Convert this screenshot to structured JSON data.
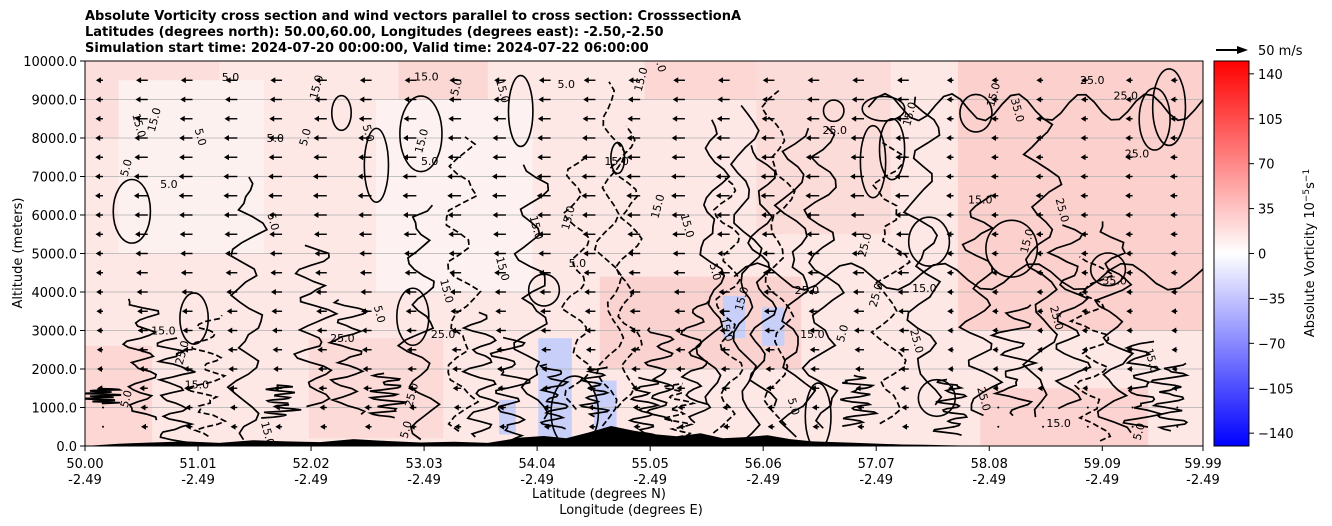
{
  "chart_data": {
    "type": "heatmap",
    "title_lines": [
      "Absolute Vorticity cross section and wind vectors parallel to cross section: CrosssectionA",
      "Latitudes (degrees north): 50.00,60.00, Longitudes (degrees east): -2.50,-2.50",
      "Simulation start time: 2024-07-20 00:00:00, Valid time: 2024-07-22 06:00:00"
    ],
    "ylabel": "Altitude (meters)",
    "xlabel_lines": [
      "Latitude (degrees N)",
      "Longitude (degrees E)"
    ],
    "ylim": [
      0,
      10000
    ],
    "xlim": [
      50.0,
      59.99
    ],
    "y_ticks": [
      "0.0",
      "1000.0",
      "2000.0",
      "3000.0",
      "4000.0",
      "5000.0",
      "6000.0",
      "7000.0",
      "8000.0",
      "9000.0",
      "10000.0"
    ],
    "y_tick_values": [
      0,
      1000,
      2000,
      3000,
      4000,
      5000,
      6000,
      7000,
      8000,
      9000,
      10000
    ],
    "x_ticks": [
      {
        "lat": "50.00",
        "lon": "-2.49",
        "value": 50.0
      },
      {
        "lat": "51.01",
        "lon": "-2.49",
        "value": 51.01
      },
      {
        "lat": "52.02",
        "lon": "-2.49",
        "value": 52.02
      },
      {
        "lat": "53.03",
        "lon": "-2.49",
        "value": 53.03
      },
      {
        "lat": "54.04",
        "lon": "-2.49",
        "value": 54.04
      },
      {
        "lat": "55.05",
        "lon": "-2.49",
        "value": 55.05
      },
      {
        "lat": "56.06",
        "lon": "-2.49",
        "value": 56.06
      },
      {
        "lat": "57.07",
        "lon": "-2.49",
        "value": 57.07
      },
      {
        "lat": "58.08",
        "lon": "-2.49",
        "value": 58.08
      },
      {
        "lat": "59.09",
        "lon": "-2.49",
        "value": 59.09
      },
      {
        "lat": "59.99",
        "lon": "-2.49",
        "value": 59.99
      }
    ],
    "grid": "horizontal",
    "colormap": "bwr",
    "colorbar": {
      "label": "Absolute Vorticity 10$^{-5}$s$^{-1}$",
      "label_main": "Absolute Vorticity 10",
      "label_exp1": "−5",
      "label_unit": "s",
      "label_exp2": "−1",
      "range": [
        -150,
        150
      ],
      "ticks": [
        "140",
        "105",
        "70",
        "35",
        "0",
        "−35",
        "−70",
        "−105",
        "−140"
      ],
      "tick_values": [
        140,
        105,
        70,
        35,
        0,
        -35,
        -70,
        -105,
        -140
      ],
      "low_color": "#0000ff",
      "mid_color": "#ffffff",
      "high_color": "#ff0000"
    },
    "quiver_key": "50 m/s",
    "contour_labels": [
      "5.0",
      "15.0",
      "25.0",
      "35.0"
    ],
    "contour_label_positions": [
      {
        "text": "5.0",
        "lat": 51.3,
        "alt": 9480
      },
      {
        "text": "15.0",
        "lat": 52.1,
        "alt": 9300
      },
      {
        "text": "5.0",
        "lat": 52.5,
        "alt": 8100
      },
      {
        "text": "15.0",
        "lat": 53.05,
        "alt": 9500
      },
      {
        "text": "5.0",
        "lat": 53.35,
        "alt": 9300
      },
      {
        "text": "15.0",
        "lat": 53.7,
        "alt": 9200
      },
      {
        "text": "5.0",
        "lat": 54.3,
        "alt": 9300
      },
      {
        "text": "15.0",
        "lat": 55.0,
        "alt": 9500
      },
      {
        "text": "15.0",
        "lat": 55.1,
        "alt": 10000
      },
      {
        "text": "25.0",
        "lat": 56.7,
        "alt": 8100
      },
      {
        "text": "15.0",
        "lat": 57.4,
        "alt": 8600
      },
      {
        "text": "35.0",
        "lat": 58.3,
        "alt": 8700
      },
      {
        "text": "25.0",
        "lat": 59.0,
        "alt": 9400
      },
      {
        "text": "5.0",
        "lat": 50.4,
        "alt": 7200
      },
      {
        "text": "15.0",
        "lat": 50.45,
        "alt": 8300
      },
      {
        "text": "5.0",
        "lat": 50.75,
        "alt": 6700
      },
      {
        "text": "15.0",
        "lat": 50.65,
        "alt": 8450
      },
      {
        "text": "5.0",
        "lat": 51.0,
        "alt": 8000
      },
      {
        "text": "5.0",
        "lat": 51.7,
        "alt": 7900
      },
      {
        "text": "5.0",
        "lat": 52.0,
        "alt": 8000
      },
      {
        "text": "5.0",
        "lat": 51.65,
        "alt": 5800
      },
      {
        "text": "5.0",
        "lat": 53.08,
        "alt": 7300
      },
      {
        "text": "15.0",
        "lat": 53.04,
        "alt": 7900
      },
      {
        "text": "15.0",
        "lat": 54.0,
        "alt": 5650
      },
      {
        "text": "5.0",
        "lat": 54.4,
        "alt": 4650
      },
      {
        "text": "15.0",
        "lat": 54.35,
        "alt": 5900
      },
      {
        "text": "15.0",
        "lat": 53.7,
        "alt": 4580
      },
      {
        "text": "15.0",
        "lat": 54.75,
        "alt": 7300
      },
      {
        "text": "15.0",
        "lat": 55.15,
        "alt": 6200
      },
      {
        "text": "15.0",
        "lat": 55.35,
        "alt": 5700
      },
      {
        "text": "25.0",
        "lat": 56.45,
        "alt": 3950
      },
      {
        "text": "25.0",
        "lat": 57.1,
        "alt": 3900
      },
      {
        "text": "25.0",
        "lat": 58.0,
        "alt": 1200
      },
      {
        "text": "15.0",
        "lat": 50.7,
        "alt": 2900
      },
      {
        "text": "25.0",
        "lat": 50.9,
        "alt": 2400
      },
      {
        "text": "5.0",
        "lat": 52.6,
        "alt": 3400
      },
      {
        "text": "25.0",
        "lat": 53.2,
        "alt": 2800
      },
      {
        "text": "25.0",
        "lat": 52.95,
        "alt": 1300
      },
      {
        "text": "15.0",
        "lat": 53.2,
        "alt": 4000
      },
      {
        "text": "15.0",
        "lat": 58.7,
        "alt": 500
      },
      {
        "text": "5.0",
        "lat": 59.45,
        "alt": 350
      },
      {
        "text": "15.0",
        "lat": 59.5,
        "alt": 2200
      },
      {
        "text": "25.0",
        "lat": 59.4,
        "alt": 7500
      },
      {
        "text": "15.0",
        "lat": 58.45,
        "alt": 5300
      },
      {
        "text": "25.0",
        "lat": 58.65,
        "alt": 3300
      },
      {
        "text": "35.0",
        "lat": 59.2,
        "alt": 4200
      },
      {
        "text": "25.0",
        "lat": 57.0,
        "alt": 5200
      },
      {
        "text": "25.0",
        "lat": 57.4,
        "alt": 2700
      },
      {
        "text": "15.0",
        "lat": 57.5,
        "alt": 4000
      },
      {
        "text": "15.0",
        "lat": 55.9,
        "alt": 3800
      },
      {
        "text": "5.0",
        "lat": 55.6,
        "alt": 4500
      },
      {
        "text": "15.0",
        "lat": 51.0,
        "alt": 1500
      },
      {
        "text": "5.0",
        "lat": 50.4,
        "alt": 1200
      },
      {
        "text": "15.0",
        "lat": 51.6,
        "alt": 300
      },
      {
        "text": "25.0",
        "lat": 52.3,
        "alt": 2700
      },
      {
        "text": "5.0",
        "lat": 52.9,
        "alt": 400
      },
      {
        "text": "5.0",
        "lat": 56.3,
        "alt": 1000
      },
      {
        "text": "15.0",
        "lat": 56.5,
        "alt": 2800
      },
      {
        "text": "5.0",
        "lat": 56.8,
        "alt": 2900
      },
      {
        "text": "15.0",
        "lat": 55.7,
        "alt": 3000
      },
      {
        "text": "25.0",
        "lat": 59.3,
        "alt": 9000
      },
      {
        "text": "15.0",
        "lat": 58.15,
        "alt": 9100
      },
      {
        "text": "25.0",
        "lat": 58.7,
        "alt": 6100
      },
      {
        "text": "15.0",
        "lat": 58.0,
        "alt": 6300
      }
    ],
    "wind": {
      "description": "horizontal vectors parallel to cross section",
      "wind_lat_samples": [
        50.0,
        50.4,
        50.8,
        51.2,
        51.6,
        52.0,
        52.4,
        52.8,
        53.2,
        53.6,
        54.0,
        54.4,
        54.8,
        55.2,
        55.6,
        56.0,
        56.4,
        56.8,
        57.2,
        57.6,
        58.0,
        58.4,
        58.8,
        59.2,
        59.6
      ],
      "altitude_levels": [
        500,
        1000,
        1500,
        2000,
        2500,
        3000,
        3500,
        4000,
        4500,
        5000,
        5500,
        6000,
        6500,
        7000,
        7500,
        8000,
        8500,
        9000,
        9500
      ],
      "speed_profile_ms": [
        5,
        6,
        8,
        9,
        10,
        11,
        12,
        13,
        14,
        15,
        16,
        17,
        18,
        18,
        17,
        17,
        16,
        15,
        14
      ]
    },
    "terrain": {
      "lat": [
        50.0,
        50.3,
        50.6,
        50.9,
        51.2,
        51.5,
        51.8,
        52.1,
        52.4,
        52.7,
        53.0,
        53.3,
        53.6,
        53.9,
        54.1,
        54.3,
        54.5,
        54.7,
        54.9,
        55.1,
        55.3,
        55.5,
        55.7,
        55.9,
        56.1,
        56.3,
        56.5,
        56.7,
        56.9,
        57.1,
        57.3,
        57.5,
        57.7,
        57.9,
        58.1,
        58.3,
        58.5,
        58.7,
        58.9,
        59.1,
        59.3,
        59.5,
        59.7,
        59.99
      ],
      "alt": [
        0,
        60,
        90,
        120,
        80,
        150,
        120,
        100,
        180,
        130,
        90,
        110,
        80,
        220,
        260,
        200,
        350,
        520,
        400,
        300,
        250,
        330,
        200,
        230,
        280,
        180,
        120,
        100,
        80,
        60,
        40,
        30,
        20,
        10,
        0,
        0,
        0,
        0,
        0,
        0,
        0,
        0,
        0,
        0
      ]
    }
  }
}
